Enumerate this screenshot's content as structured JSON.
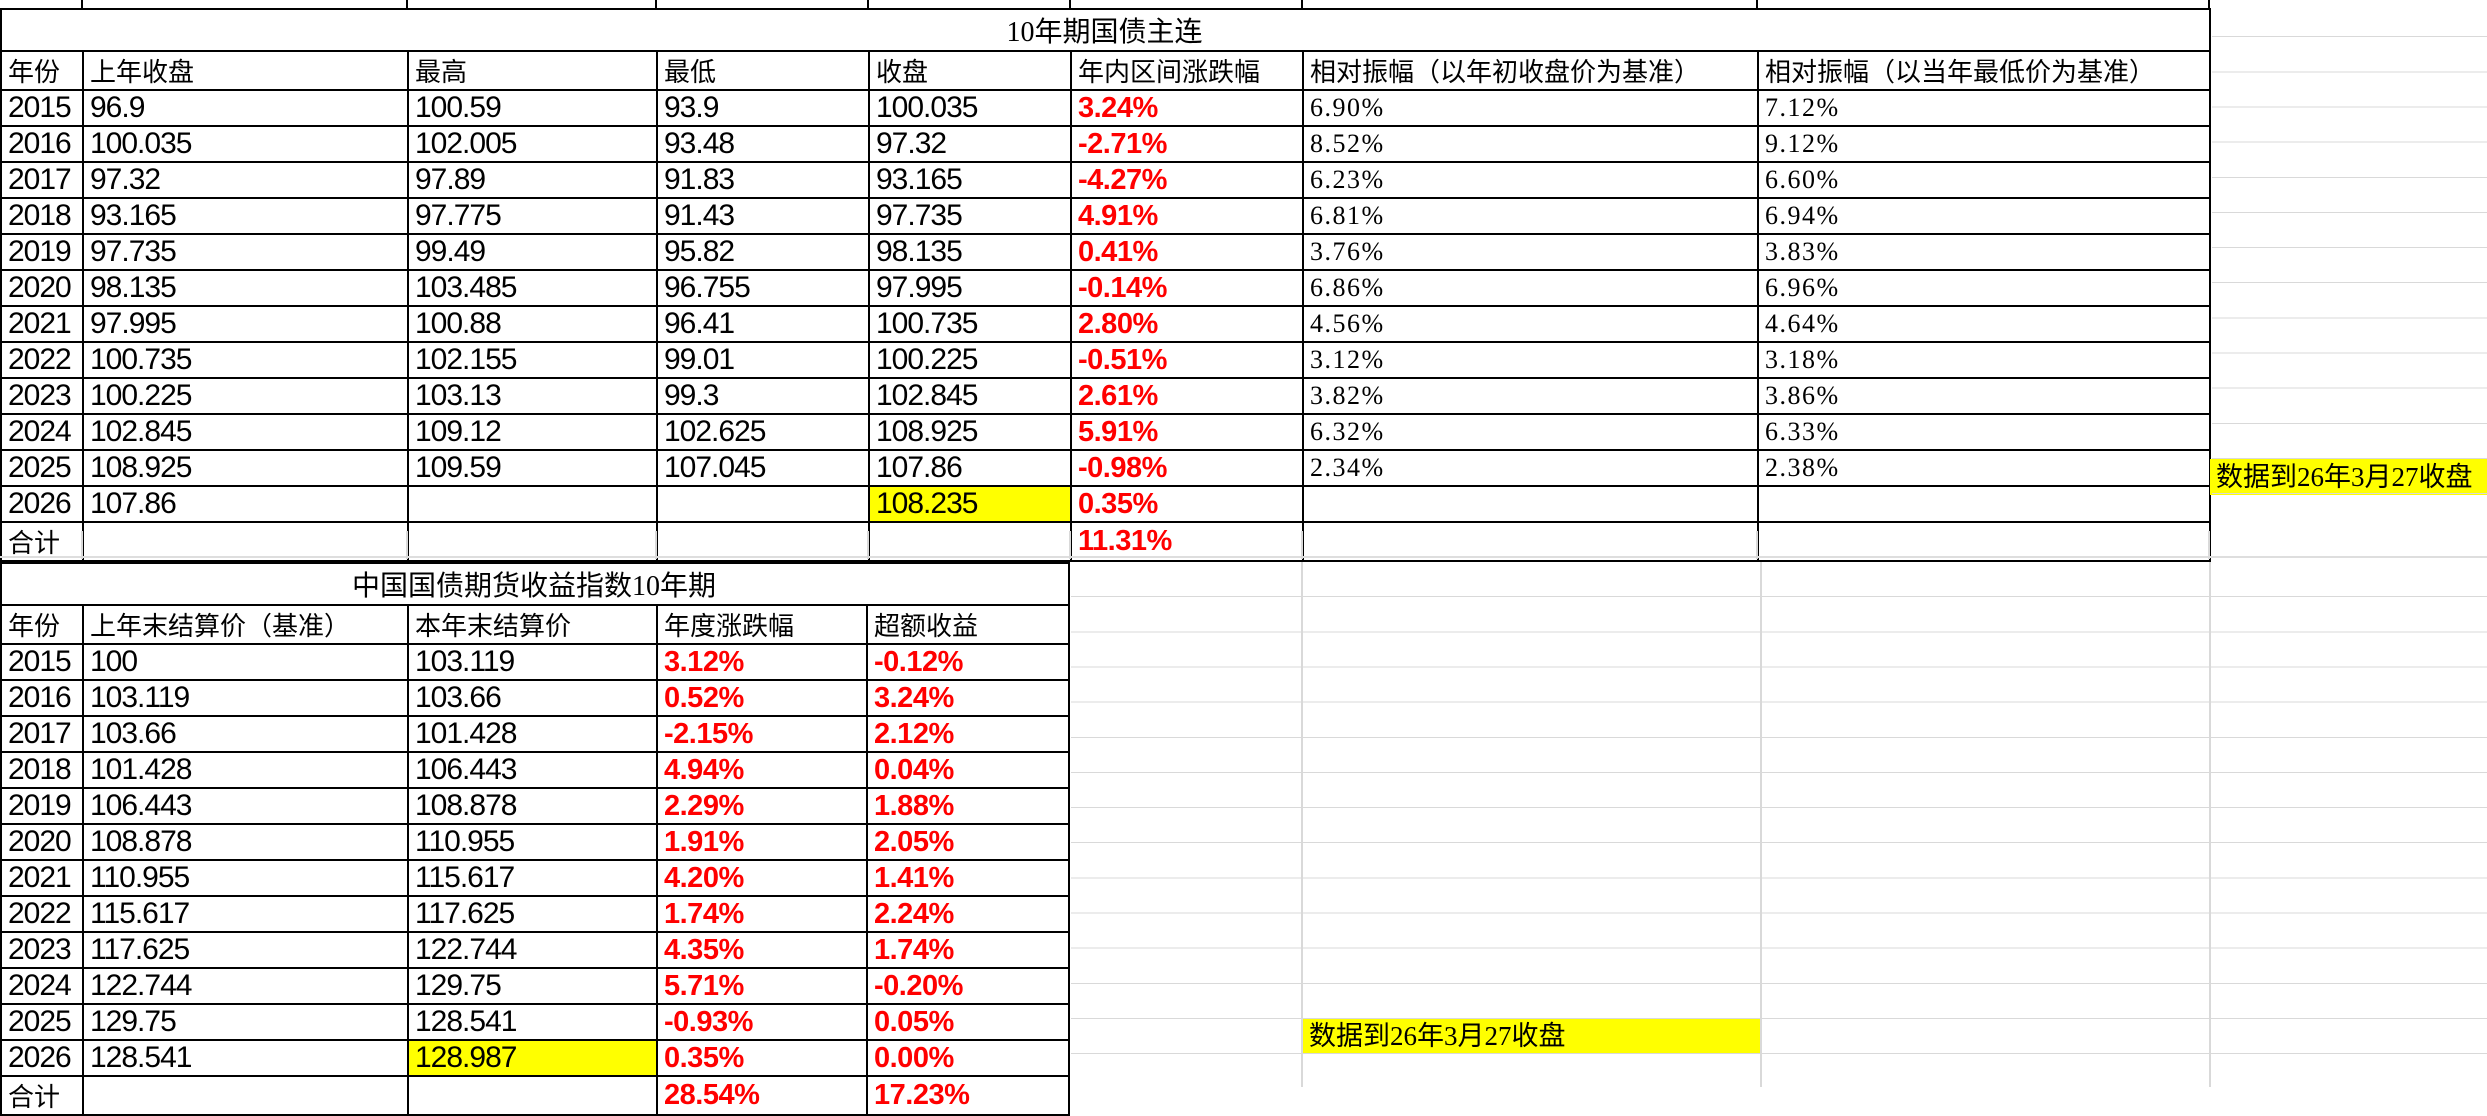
{
  "colors": {
    "highlight": "#FFFF00",
    "percent_red": "#FF0000",
    "table_border": "#000000",
    "gridline": "#D9D9D9"
  },
  "table1": {
    "title": "10年期国债主连",
    "columns": [
      "年份",
      "上年收盘",
      "最高",
      "最低",
      "收盘",
      "年内区间涨跌幅",
      "相对振幅（以年初收盘价为基准）",
      "相对振幅（以当年最低价为基准）"
    ],
    "rows": [
      [
        "2015",
        "96.9",
        "100.59",
        "93.9",
        "100.035",
        "3.24%",
        "6.90%",
        "7.12%"
      ],
      [
        "2016",
        "100.035",
        "102.005",
        "93.48",
        "97.32",
        "-2.71%",
        "8.52%",
        "9.12%"
      ],
      [
        "2017",
        "97.32",
        "97.89",
        "91.83",
        "93.165",
        "-4.27%",
        "6.23%",
        "6.60%"
      ],
      [
        "2018",
        "93.165",
        "97.775",
        "91.43",
        "97.735",
        "4.91%",
        "6.81%",
        "6.94%"
      ],
      [
        "2019",
        "97.735",
        "99.49",
        "95.82",
        "98.135",
        "0.41%",
        "3.76%",
        "3.83%"
      ],
      [
        "2020",
        "98.135",
        "103.485",
        "96.755",
        "97.995",
        "-0.14%",
        "6.86%",
        "6.96%"
      ],
      [
        "2021",
        "97.995",
        "100.88",
        "96.41",
        "100.735",
        "2.80%",
        "4.56%",
        "4.64%"
      ],
      [
        "2022",
        "100.735",
        "102.155",
        "99.01",
        "100.225",
        "-0.51%",
        "3.12%",
        "3.18%"
      ],
      [
        "2023",
        "100.225",
        "103.13",
        "99.3",
        "102.845",
        "2.61%",
        "3.82%",
        "3.86%"
      ],
      [
        "2024",
        "102.845",
        "109.12",
        "102.625",
        "108.925",
        "5.91%",
        "6.32%",
        "6.33%"
      ],
      [
        "2025",
        "108.925",
        "109.59",
        "107.045",
        "107.86",
        "-0.98%",
        "2.34%",
        "2.38%"
      ],
      [
        "2026",
        "107.86",
        "",
        "",
        "108.235",
        "0.35%",
        "",
        ""
      ],
      [
        "合计",
        "",
        "",
        "",
        "",
        "11.31%",
        "",
        ""
      ]
    ],
    "highlight_cells": [
      {
        "row_label": "2026",
        "column": "收盘"
      }
    ],
    "highlight_note": "数据到26年3月27收盘"
  },
  "table2": {
    "title": "中国国债期货收益指数10年期",
    "columns": [
      "年份",
      "上年末结算价（基准）",
      "本年末结算价",
      "年度涨跌幅",
      "超额收益"
    ],
    "rows": [
      [
        "2015",
        "100",
        "103.119",
        "3.12%",
        "-0.12%"
      ],
      [
        "2016",
        "103.119",
        "103.66",
        "0.52%",
        "3.24%"
      ],
      [
        "2017",
        "103.66",
        "101.428",
        "-2.15%",
        "2.12%"
      ],
      [
        "2018",
        "101.428",
        "106.443",
        "4.94%",
        "0.04%"
      ],
      [
        "2019",
        "106.443",
        "108.878",
        "2.29%",
        "1.88%"
      ],
      [
        "2020",
        "108.878",
        "110.955",
        "1.91%",
        "2.05%"
      ],
      [
        "2021",
        "110.955",
        "115.617",
        "4.20%",
        "1.41%"
      ],
      [
        "2022",
        "115.617",
        "117.625",
        "1.74%",
        "2.24%"
      ],
      [
        "2023",
        "117.625",
        "122.744",
        "4.35%",
        "1.74%"
      ],
      [
        "2024",
        "122.744",
        "129.75",
        "5.71%",
        "-0.20%"
      ],
      [
        "2025",
        "129.75",
        "128.541",
        "-0.93%",
        "0.05%"
      ],
      [
        "2026",
        "128.541",
        "128.987",
        "0.35%",
        "0.00%"
      ],
      [
        "合计",
        "",
        "",
        "28.54%",
        "17.23%"
      ]
    ],
    "highlight_cells": [
      {
        "row_label": "2026",
        "column": "本年末结算价"
      }
    ],
    "highlight_note": "数据到26年3月27收盘"
  }
}
